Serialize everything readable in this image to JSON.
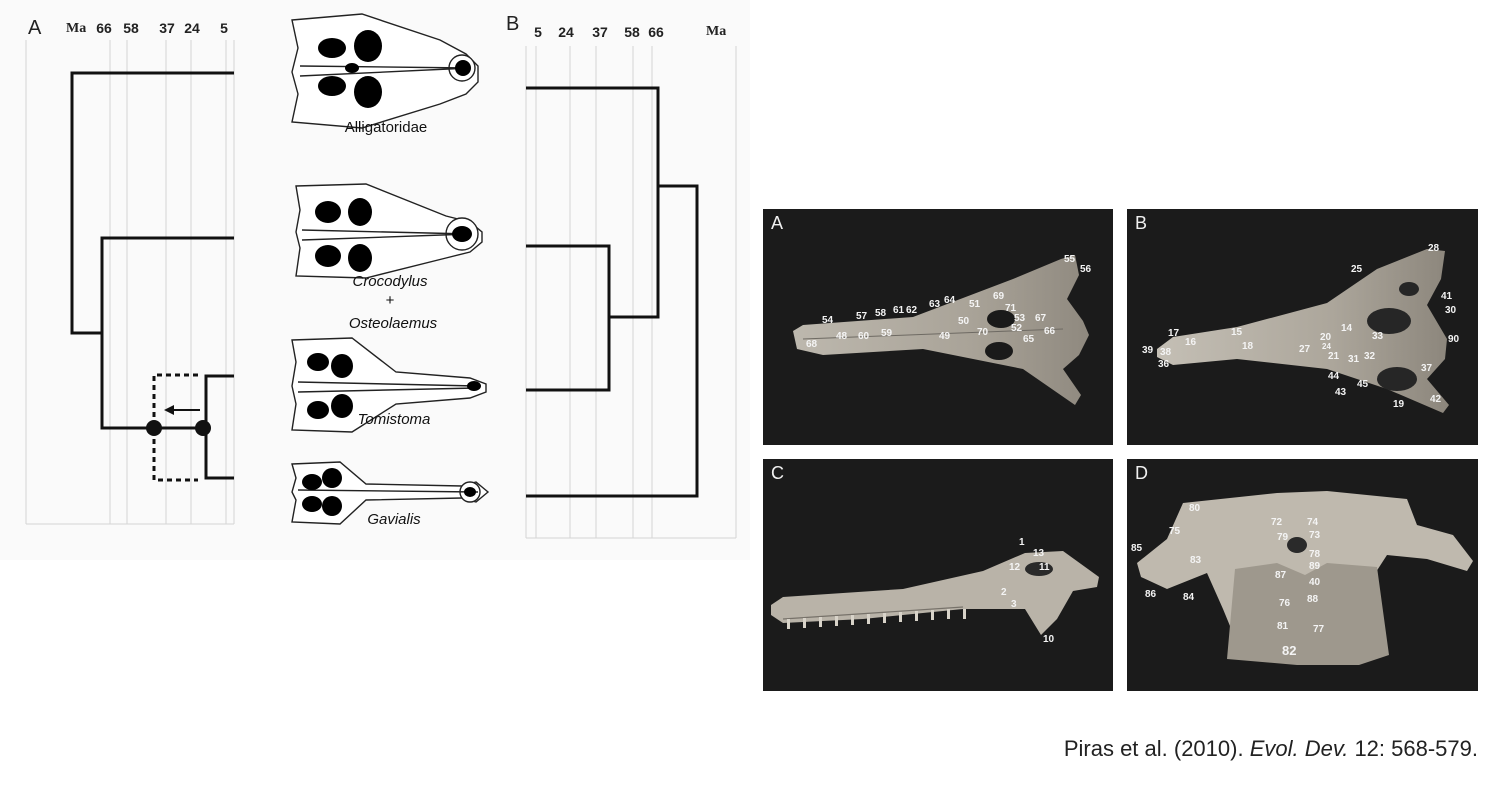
{
  "figure": {
    "panel_a_label": "A",
    "panel_b_label": "B",
    "ma_label": "Ma",
    "tree_a_ticks": [
      "66",
      "58",
      "37",
      "24",
      "5"
    ],
    "tree_b_ticks": [
      "5",
      "24",
      "37",
      "58",
      "66"
    ],
    "taxa": {
      "alligatoridae": "Alligatoridae",
      "crocodylus": "Crocodylus",
      "plus": "+",
      "osteolaemus": "Osteolaemus",
      "tomistoma": "Tomistoma",
      "gavialis": "Gavialis"
    }
  },
  "photos": {
    "a": {
      "label": "A",
      "landmarks": [
        "55",
        "56",
        "69",
        "63",
        "64",
        "51",
        "71",
        "53",
        "57",
        "58",
        "61",
        "62",
        "54",
        "50",
        "67",
        "52",
        "66",
        "48",
        "60",
        "59",
        "49",
        "70",
        "65",
        "68"
      ]
    },
    "b": {
      "label": "B",
      "landmarks": [
        "28",
        "25",
        "41",
        "30",
        "17",
        "16",
        "15",
        "14",
        "20",
        "33",
        "90",
        "39",
        "38",
        "18",
        "27",
        "21",
        "31",
        "32",
        "36",
        "44",
        "45",
        "37",
        "43",
        "19",
        "42",
        "24"
      ]
    },
    "c": {
      "label": "C",
      "landmarks": [
        "1",
        "13",
        "12",
        "11",
        "2",
        "3",
        "10"
      ]
    },
    "d": {
      "label": "D",
      "landmarks": [
        "80",
        "72",
        "74",
        "75",
        "73",
        "79",
        "85",
        "83",
        "78",
        "89",
        "87",
        "86",
        "84",
        "40",
        "88",
        "76",
        "81",
        "77",
        "82"
      ]
    }
  },
  "citation": {
    "authors": "Piras et al. (2010). ",
    "journal": "Evol. Dev.",
    "rest": " 12: 568-579."
  }
}
